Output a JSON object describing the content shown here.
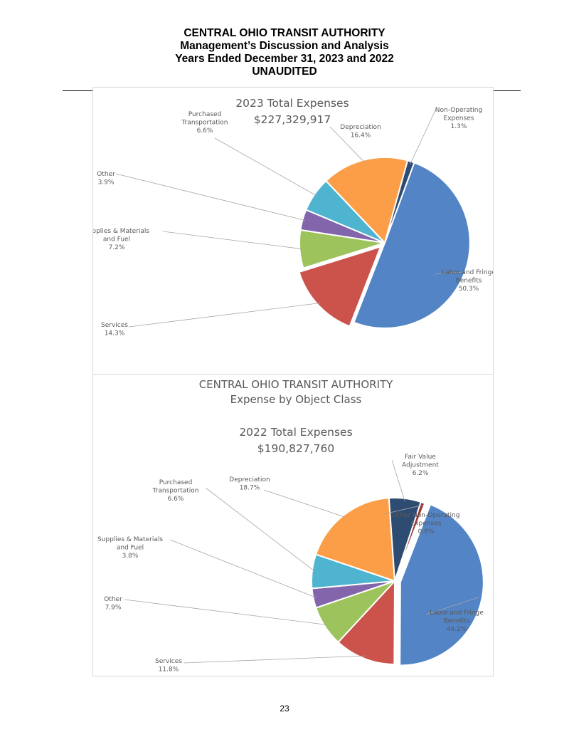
{
  "header": {
    "line1": "CENTRAL OHIO TRANSIT AUTHORITY",
    "line2": "Management’s Discussion and Analysis",
    "line3": "Years Ended December 31, 2023 and 2022",
    "line4": "UNAUDITED"
  },
  "page_number": "23",
  "chart_data": [
    {
      "type": "pie",
      "title": "2023 Total Expenses",
      "subtitle": "$227,329,917",
      "slices": [
        {
          "label": "Labor and Fringe Benefits",
          "value": 50.3,
          "display": "50.3%",
          "color": "#5284c6",
          "exploded": false
        },
        {
          "label": "Services",
          "value": 14.3,
          "display": "14.3%",
          "color": "#cc524c",
          "exploded": true
        },
        {
          "label": "Supplies & Materials and Fuel",
          "value": 7.2,
          "display": "7.2%",
          "color": "#9dc35c",
          "exploded": false
        },
        {
          "label": "Other",
          "value": 3.9,
          "display": "3.9%",
          "color": "#8265ab",
          "exploded": false
        },
        {
          "label": "Purchased Transportation",
          "value": 6.6,
          "display": "6.6%",
          "color": "#4fb4cf",
          "exploded": false
        },
        {
          "label": "Depreciation",
          "value": 16.4,
          "display": "16.4%",
          "color": "#fb9e47",
          "exploded": false
        },
        {
          "label": "Non-Operating Expenses",
          "value": 1.3,
          "display": "1.3%",
          "color": "#2e4c72",
          "exploded": false
        }
      ]
    },
    {
      "type": "pie",
      "heading1": "CENTRAL OHIO TRANSIT AUTHORITY",
      "heading2": "Expense by Object Class",
      "title": "2022 Total Expenses",
      "subtitle": "$190,827,760",
      "slices": [
        {
          "label": "Labor and Fringe Benefits",
          "value": 44.2,
          "display": "44.2%",
          "color": "#5284c6",
          "exploded": true
        },
        {
          "label": "Services",
          "value": 11.8,
          "display": "11.8%",
          "color": "#cc524c",
          "exploded": false
        },
        {
          "label": "Other",
          "value": 7.9,
          "display": "7.9%",
          "color": "#9dc35c",
          "exploded": false
        },
        {
          "label": "Supplies & Materials and Fuel",
          "value": 3.8,
          "display": "3.8%",
          "color": "#8265ab",
          "exploded": false
        },
        {
          "label": "Purchased Transportation",
          "value": 6.6,
          "display": "6.6%",
          "color": "#4fb4cf",
          "exploded": false
        },
        {
          "label": "Depreciation",
          "value": 18.7,
          "display": "18.7%",
          "color": "#fb9e47",
          "exploded": false
        },
        {
          "label": "Fair Value Adjustment",
          "value": 6.2,
          "display": "6.2%",
          "color": "#2e4c72",
          "exploded": false
        },
        {
          "label": "Other Non-Operating Expenses",
          "value": 0.8,
          "display": "0.8%",
          "color": "#9e3531",
          "exploded": false
        }
      ]
    }
  ]
}
